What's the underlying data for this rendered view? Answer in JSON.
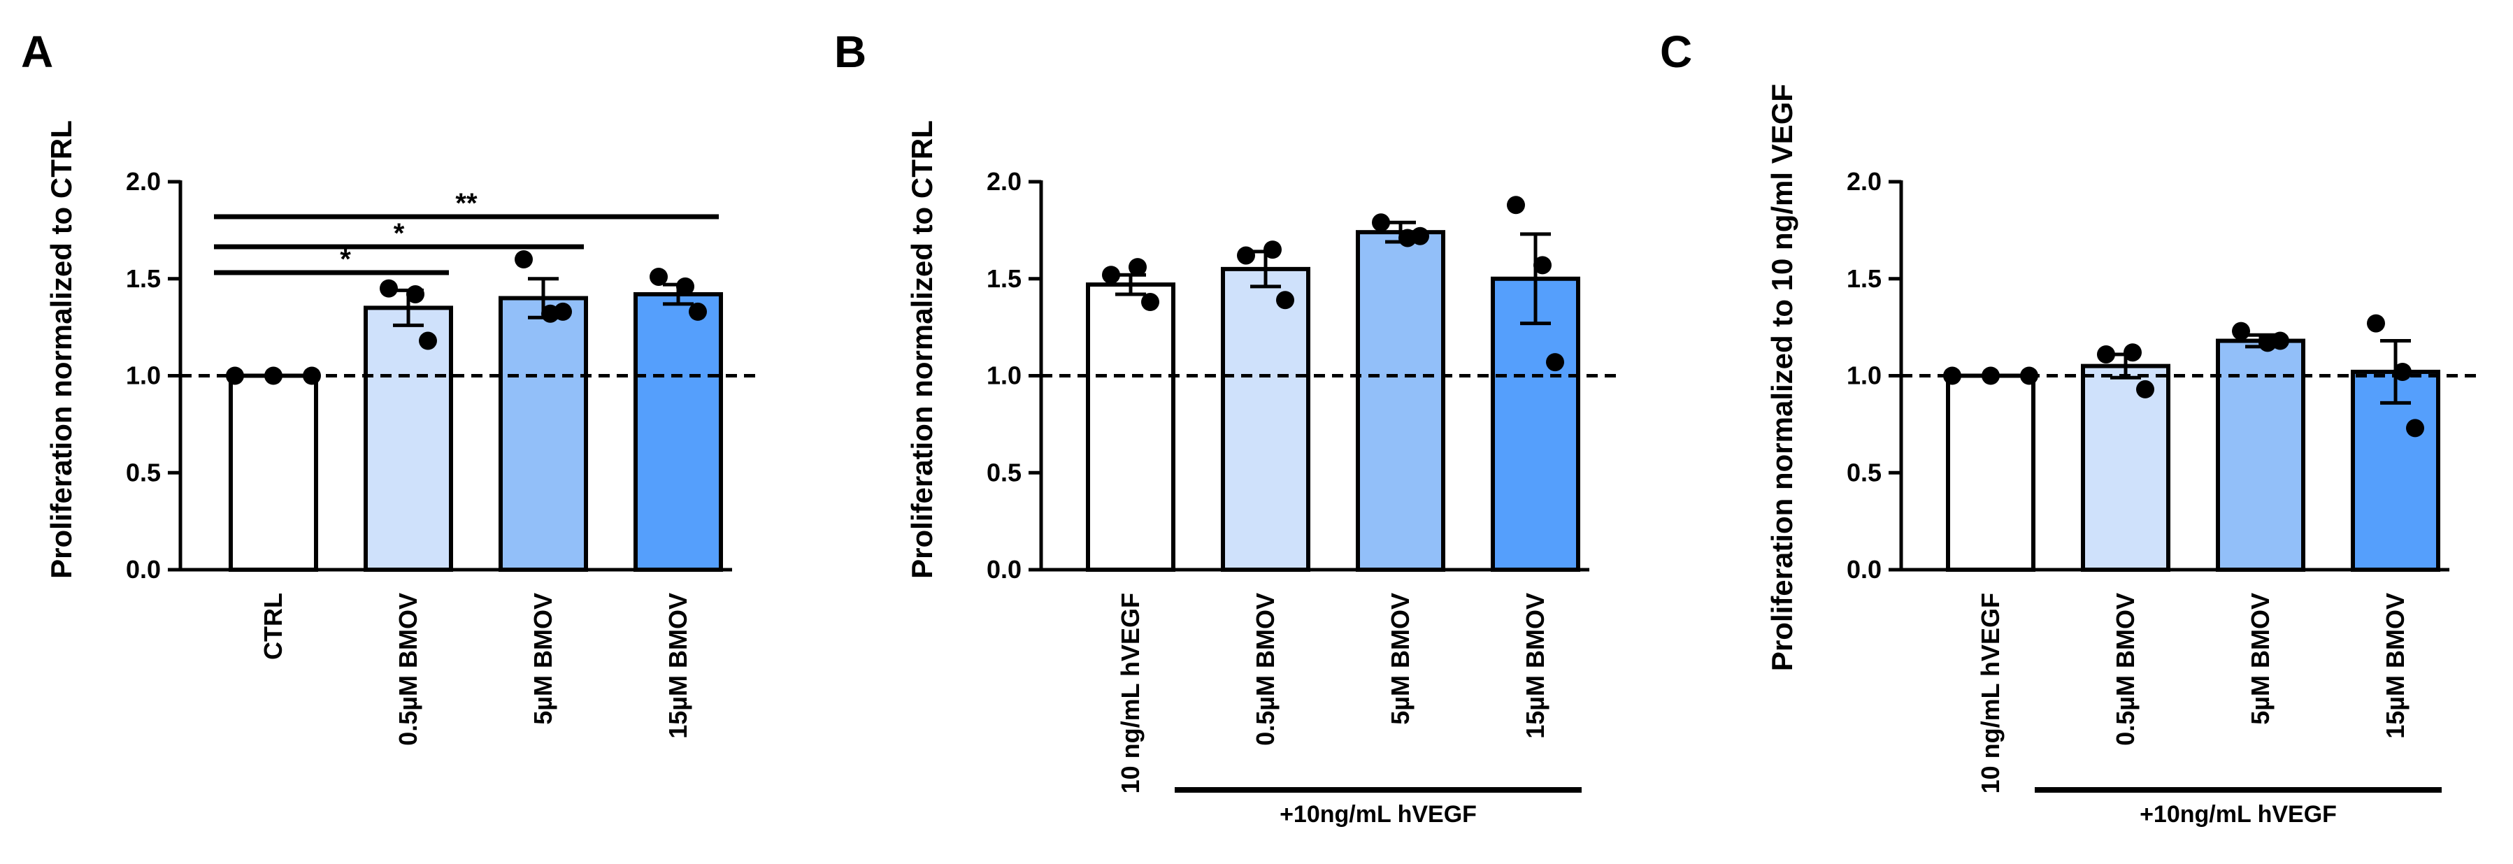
{
  "chart_data": [
    {
      "panel": "A",
      "type": "bar",
      "ylabel": "Proliferation normalized to CTRL",
      "ylim": [
        0,
        2.0
      ],
      "yticks": [
        "0.0",
        "0.5",
        "1.0",
        "1.5",
        "2.0"
      ],
      "reference_line": 1.0,
      "categories": [
        "CTRL",
        "0.5µM BMOV",
        "5µM BMOV",
        "15µM BMOV"
      ],
      "values": [
        1.0,
        1.35,
        1.4,
        1.42
      ],
      "errors": [
        0.0,
        0.09,
        0.1,
        0.05
      ],
      "colors": [
        "#ffffff",
        "#cfe1fb",
        "#92bff9",
        "#559ffc"
      ],
      "points": [
        [
          1.0,
          1.0,
          1.0
        ],
        [
          1.45,
          1.42,
          1.18
        ],
        [
          1.6,
          1.32,
          1.33
        ],
        [
          1.51,
          1.46,
          1.33
        ]
      ],
      "significance": [
        {
          "from": 0,
          "to": 1,
          "label": "*"
        },
        {
          "from": 0,
          "to": 2,
          "label": "*"
        },
        {
          "from": 0,
          "to": 3,
          "label": "**"
        }
      ],
      "group_label": ""
    },
    {
      "panel": "B",
      "type": "bar",
      "ylabel": "Proliferation normalized to CTRL",
      "ylim": [
        0,
        2.0
      ],
      "yticks": [
        "0.0",
        "0.5",
        "1.0",
        "1.5",
        "2.0"
      ],
      "reference_line": 1.0,
      "categories": [
        "10 ng/mL hVEGF",
        "0.5µM BMOV",
        "5µM BMOV",
        "15µM BMOV"
      ],
      "values": [
        1.47,
        1.55,
        1.74,
        1.5
      ],
      "errors": [
        0.05,
        0.09,
        0.05,
        0.23
      ],
      "colors": [
        "#ffffff",
        "#cfe1fb",
        "#92bff9",
        "#559ffc"
      ],
      "points": [
        [
          1.52,
          1.56,
          1.38
        ],
        [
          1.62,
          1.65,
          1.39
        ],
        [
          1.79,
          1.71,
          1.72
        ],
        [
          1.88,
          1.57,
          1.07
        ]
      ],
      "significance": [],
      "group_label": "+10ng/mL hVEGF"
    },
    {
      "panel": "C",
      "type": "bar",
      "ylabel": "Proliferation normalized to 10 ng/ml VEGF",
      "ylim": [
        0,
        2.0
      ],
      "yticks": [
        "0.0",
        "0.5",
        "1.0",
        "1.5",
        "2.0"
      ],
      "reference_line": 1.0,
      "categories": [
        "10 ng/mL hVEGF",
        "0.5µM BMOV",
        "5µM BMOV",
        "15µM BMOV"
      ],
      "values": [
        1.0,
        1.05,
        1.18,
        1.02
      ],
      "errors": [
        0.0,
        0.06,
        0.03,
        0.16
      ],
      "colors": [
        "#ffffff",
        "#cfe1fb",
        "#92bff9",
        "#559ffc"
      ],
      "points": [
        [
          1.0,
          1.0,
          1.0
        ],
        [
          1.11,
          1.12,
          0.93
        ],
        [
          1.23,
          1.17,
          1.18
        ],
        [
          1.27,
          1.02,
          0.73
        ]
      ],
      "significance": [],
      "group_label": "+10ng/mL hVEGF"
    }
  ]
}
